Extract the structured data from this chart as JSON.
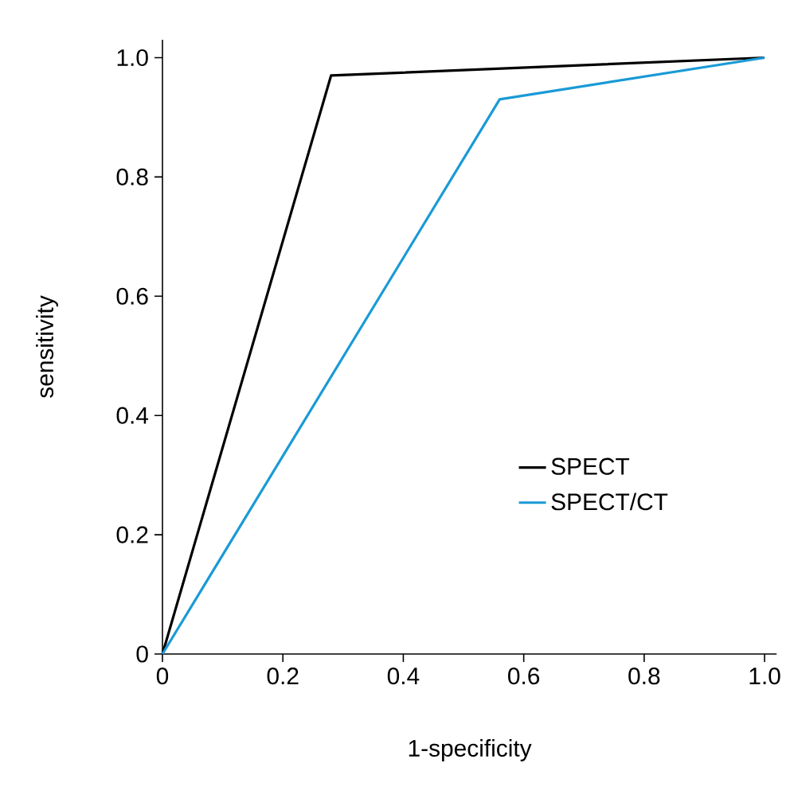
{
  "chart_data": {
    "type": "line",
    "xlabel": "1-specificity",
    "ylabel": "sensitivity",
    "xlim": [
      0,
      1.02
    ],
    "ylim": [
      0,
      1.03
    ],
    "xticks": [
      0,
      0.2,
      0.4,
      0.6,
      0.8,
      {
        "value": 1,
        "label": "1.0"
      }
    ],
    "yticks": [
      0,
      0.2,
      0.4,
      0.6,
      0.8,
      {
        "value": 1,
        "label": "1.0"
      }
    ],
    "grid": false,
    "legend": "right",
    "marker": "none",
    "line_style": "solid",
    "series": [
      {
        "name": "SPECT",
        "color": "#000000",
        "x": [
          0,
          0.28,
          1.0
        ],
        "values": [
          0,
          0.97,
          1.0
        ]
      },
      {
        "name": "SPECT/CT",
        "color": "#1a9ad6",
        "x": [
          0,
          0.56,
          1.0
        ],
        "values": [
          0,
          0.93,
          1.0
        ]
      }
    ]
  }
}
